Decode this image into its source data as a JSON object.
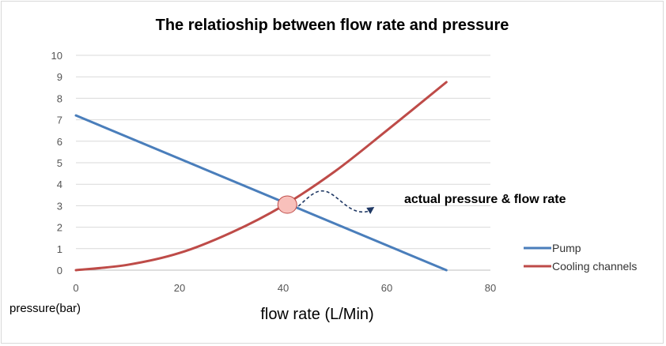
{
  "chart_data": {
    "type": "line",
    "title": "The relatioship between flow rate and pressure",
    "xlabel": "flow rate (L/Min)",
    "ylabel": "pressure(bar)",
    "xlim": [
      0,
      80
    ],
    "ylim": [
      0,
      10
    ],
    "x_ticks": [
      0,
      20,
      40,
      60,
      80
    ],
    "y_ticks": [
      0,
      1,
      2,
      3,
      4,
      5,
      6,
      7,
      8,
      9,
      10
    ],
    "grid": true,
    "legend_position": "right",
    "series": [
      {
        "name": "Pump",
        "color": "#4a7ebb",
        "x": [
          0,
          71.5
        ],
        "y": [
          7.2,
          0
        ]
      },
      {
        "name": "Cooling channels",
        "color": "#be4b48",
        "x": [
          0,
          10,
          20,
          30,
          40,
          50,
          60,
          71.5
        ],
        "y": [
          0,
          0.25,
          0.8,
          1.75,
          3.0,
          4.6,
          6.5,
          8.75
        ]
      }
    ],
    "annotations": [
      {
        "text": "actual pressure & flow rate",
        "point": [
          40.8,
          3.05
        ],
        "marker_color": "#f8c0bb",
        "marker_stroke": "#be4b48",
        "arrow_color": "#1f3864"
      }
    ]
  }
}
